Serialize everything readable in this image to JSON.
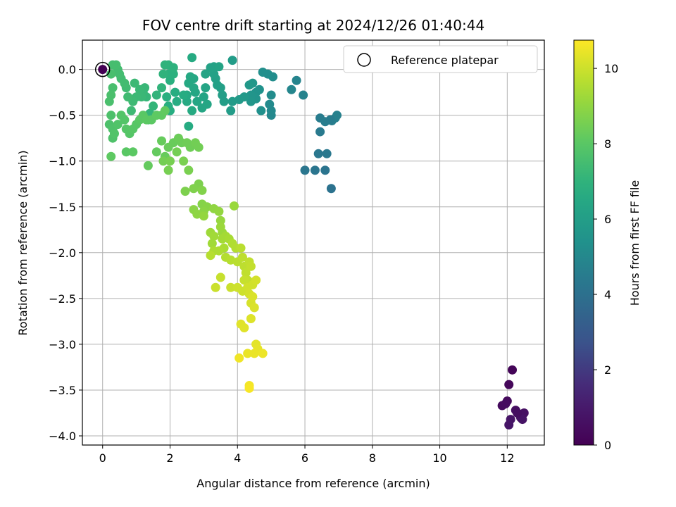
{
  "chart_data": {
    "type": "scatter",
    "title": "FOV centre drift starting at 2024/12/26 01:40:44",
    "xlabel": "Angular distance from reference (arcmin)",
    "ylabel": "Rotation from reference (arcmin)",
    "xlim": [
      -0.6,
      13.1
    ],
    "ylim": [
      -4.1,
      0.32
    ],
    "xticks": [
      0,
      2,
      4,
      6,
      8,
      10,
      12
    ],
    "yticks": [
      -4.0,
      -3.5,
      -3.0,
      -2.5,
      -2.0,
      -1.5,
      -1.0,
      -0.5,
      0.0
    ],
    "grid": true,
    "colorbar": {
      "label": "Hours from first FF file",
      "colormap": "viridis",
      "range": [
        0,
        10.75
      ],
      "ticks": [
        0,
        2,
        4,
        6,
        8,
        10
      ]
    },
    "legend": {
      "position": "top-right",
      "entries": [
        "Reference platepar"
      ]
    },
    "reference_point": {
      "x": 0,
      "y": 0,
      "hours": 0
    },
    "series": [
      {
        "points": [
          [
            12.15,
            -3.28,
            0.15
          ],
          [
            12.05,
            -3.44,
            0.25
          ],
          [
            12.0,
            -3.62,
            0.35
          ],
          [
            11.85,
            -3.67,
            0.4
          ],
          [
            11.95,
            -3.65,
            0.45
          ],
          [
            12.25,
            -3.72,
            0.55
          ],
          [
            12.5,
            -3.75,
            0.6
          ],
          [
            12.4,
            -3.8,
            0.65
          ],
          [
            12.45,
            -3.82,
            0.7
          ],
          [
            12.1,
            -3.82,
            0.75
          ],
          [
            12.05,
            -3.88,
            0.8
          ],
          [
            12.3,
            -3.75,
            0.5
          ],
          [
            6.78,
            -1.3,
            4.1
          ],
          [
            6.6,
            -1.1,
            4.15
          ],
          [
            6.3,
            -1.1,
            4.2
          ],
          [
            6.0,
            -1.1,
            4.25
          ],
          [
            6.4,
            -0.92,
            4.3
          ],
          [
            6.65,
            -0.92,
            4.35
          ],
          [
            6.45,
            -0.68,
            4.4
          ],
          [
            6.45,
            -0.53,
            4.5
          ],
          [
            6.6,
            -0.57,
            4.55
          ],
          [
            6.8,
            -0.56,
            4.6
          ],
          [
            6.9,
            -0.53,
            4.65
          ],
          [
            6.95,
            -0.5,
            4.7
          ],
          [
            6.75,
            -0.55,
            4.5
          ],
          [
            5.95,
            -0.28,
            4.8
          ],
          [
            5.75,
            -0.12,
            4.85
          ],
          [
            5.6,
            -0.22,
            4.9
          ],
          [
            5.0,
            -0.5,
            5.0
          ],
          [
            5.0,
            -0.45,
            5.05
          ],
          [
            4.95,
            -0.38,
            5.1
          ],
          [
            5.0,
            -0.28,
            5.15
          ],
          [
            5.05,
            -0.08,
            5.2
          ],
          [
            4.9,
            -0.05,
            5.25
          ],
          [
            4.75,
            -0.03,
            5.3
          ],
          [
            4.7,
            -0.45,
            5.35
          ],
          [
            4.65,
            -0.22,
            5.4
          ],
          [
            4.55,
            -0.25,
            5.45
          ],
          [
            4.55,
            -0.32,
            5.5
          ],
          [
            4.4,
            -0.28,
            5.55
          ],
          [
            4.4,
            -0.35,
            5.6
          ],
          [
            4.45,
            -0.15,
            5.65
          ],
          [
            4.35,
            -0.17,
            5.7
          ],
          [
            4.2,
            -0.3,
            5.75
          ],
          [
            4.05,
            -0.33,
            5.8
          ],
          [
            3.85,
            -0.35,
            5.85
          ],
          [
            3.8,
            -0.45,
            5.9
          ],
          [
            3.6,
            -0.35,
            5.95
          ],
          [
            3.55,
            -0.28,
            6.0
          ],
          [
            3.5,
            -0.2,
            6.05
          ],
          [
            3.4,
            -0.17,
            6.1
          ],
          [
            3.35,
            -0.1,
            6.1
          ],
          [
            3.3,
            -0.05,
            6.15
          ],
          [
            3.2,
            0.02,
            6.2
          ],
          [
            3.3,
            0.03,
            6.2
          ],
          [
            3.45,
            0.03,
            6.25
          ],
          [
            3.05,
            -0.05,
            6.25
          ],
          [
            3.05,
            -0.2,
            6.3
          ],
          [
            3.0,
            -0.3,
            6.3
          ],
          [
            3.1,
            -0.38,
            6.35
          ],
          [
            2.95,
            -0.42,
            6.35
          ],
          [
            2.8,
            -0.35,
            6.4
          ],
          [
            2.75,
            -0.25,
            6.4
          ],
          [
            2.7,
            -0.2,
            6.45
          ],
          [
            2.7,
            -0.1,
            6.45
          ],
          [
            2.6,
            -0.08,
            6.5
          ],
          [
            2.55,
            -0.15,
            6.5
          ],
          [
            2.5,
            -0.28,
            6.55
          ],
          [
            2.5,
            -0.35,
            6.55
          ],
          [
            2.65,
            -0.45,
            6.6
          ],
          [
            2.65,
            0.13,
            6.6
          ],
          [
            3.85,
            0.1,
            5.9
          ],
          [
            2.55,
            -0.62,
            6.65
          ],
          [
            2.4,
            -0.28,
            6.7
          ],
          [
            2.2,
            -0.35,
            6.7
          ],
          [
            2.15,
            -0.25,
            6.75
          ],
          [
            2.0,
            -0.45,
            6.75
          ],
          [
            1.95,
            -0.4,
            6.8
          ],
          [
            1.9,
            -0.3,
            6.85
          ],
          [
            2.0,
            -0.12,
            6.85
          ],
          [
            1.95,
            -0.05,
            6.9
          ],
          [
            2.1,
            -0.05,
            6.9
          ],
          [
            2.1,
            0.02,
            6.95
          ],
          [
            1.95,
            0.05,
            6.95
          ],
          [
            1.85,
            0.05,
            7.0
          ],
          [
            1.8,
            -0.05,
            7.0
          ],
          [
            1.75,
            -0.2,
            7.05
          ],
          [
            1.6,
            -0.28,
            7.05
          ],
          [
            1.5,
            -0.4,
            7.1
          ],
          [
            1.4,
            -0.48,
            7.1
          ],
          [
            1.35,
            -0.55,
            7.15
          ],
          [
            1.3,
            -0.3,
            7.15
          ],
          [
            1.25,
            -0.2,
            7.2
          ],
          [
            1.2,
            -0.25,
            7.2
          ],
          [
            1.15,
            -0.3,
            7.25
          ],
          [
            1.1,
            -0.22,
            7.25
          ],
          [
            1.0,
            -0.3,
            7.3
          ],
          [
            0.95,
            -0.15,
            7.3
          ],
          [
            0.9,
            -0.35,
            7.35
          ],
          [
            0.85,
            -0.45,
            7.35
          ],
          [
            0.75,
            -0.3,
            7.4
          ],
          [
            0.7,
            -0.2,
            7.4
          ],
          [
            0.65,
            -0.15,
            7.45
          ],
          [
            0.55,
            -0.1,
            7.45
          ],
          [
            0.5,
            -0.05,
            7.5
          ],
          [
            0.45,
            0.0,
            7.5
          ],
          [
            0.4,
            0.05,
            7.55
          ],
          [
            0.3,
            0.05,
            7.55
          ],
          [
            0.25,
            -0.05,
            7.6
          ],
          [
            0.3,
            -0.2,
            7.6
          ],
          [
            0.25,
            -0.28,
            7.65
          ],
          [
            0.2,
            -0.35,
            7.65
          ],
          [
            0.25,
            -0.5,
            7.7
          ],
          [
            0.2,
            -0.6,
            7.7
          ],
          [
            0.3,
            -0.65,
            7.75
          ],
          [
            0.3,
            -0.75,
            7.75
          ],
          [
            0.35,
            -0.7,
            7.8
          ],
          [
            0.45,
            -0.6,
            7.8
          ],
          [
            0.55,
            -0.5,
            7.85
          ],
          [
            0.65,
            -0.55,
            7.85
          ],
          [
            0.7,
            -0.65,
            7.9
          ],
          [
            0.8,
            -0.7,
            7.9
          ],
          [
            0.9,
            -0.65,
            7.95
          ],
          [
            1.0,
            -0.6,
            7.95
          ],
          [
            1.1,
            -0.55,
            8.0
          ],
          [
            1.2,
            -0.5,
            8.0
          ],
          [
            1.3,
            -0.55,
            8.05
          ],
          [
            1.45,
            -0.55,
            8.05
          ],
          [
            1.6,
            -0.5,
            8.1
          ],
          [
            1.75,
            -0.5,
            8.1
          ],
          [
            1.85,
            -0.45,
            8.15
          ],
          [
            0.7,
            -0.9,
            8.0
          ],
          [
            0.9,
            -0.9,
            8.05
          ],
          [
            0.25,
            -0.95,
            8.1
          ],
          [
            1.35,
            -1.05,
            8.2
          ],
          [
            1.6,
            -0.9,
            8.2
          ],
          [
            1.75,
            -0.78,
            8.25
          ],
          [
            1.85,
            -0.95,
            8.25
          ],
          [
            1.95,
            -0.85,
            8.3
          ],
          [
            2.1,
            -0.8,
            8.3
          ],
          [
            2.25,
            -0.75,
            8.35
          ],
          [
            2.35,
            -0.8,
            8.35
          ],
          [
            2.5,
            -0.8,
            8.4
          ],
          [
            2.6,
            -0.85,
            8.4
          ],
          [
            2.75,
            -0.8,
            8.45
          ],
          [
            2.85,
            -0.85,
            8.45
          ],
          [
            2.2,
            -0.9,
            8.5
          ],
          [
            1.8,
            -1.0,
            8.5
          ],
          [
            2.0,
            -1.0,
            8.55
          ],
          [
            1.95,
            -1.1,
            8.55
          ],
          [
            2.4,
            -1.0,
            8.6
          ],
          [
            2.55,
            -1.1,
            8.6
          ],
          [
            2.85,
            -1.25,
            8.65
          ],
          [
            2.45,
            -1.33,
            8.65
          ],
          [
            2.7,
            -1.3,
            8.7
          ],
          [
            2.95,
            -1.32,
            8.75
          ],
          [
            2.95,
            -1.47,
            8.8
          ],
          [
            3.1,
            -1.5,
            8.85
          ],
          [
            3.0,
            -1.55,
            8.9
          ],
          [
            2.7,
            -1.53,
            8.9
          ],
          [
            2.8,
            -1.58,
            8.95
          ],
          [
            3.3,
            -1.52,
            9.0
          ],
          [
            3.45,
            -1.55,
            9.05
          ],
          [
            3.0,
            -1.6,
            9.05
          ],
          [
            3.5,
            -1.65,
            9.1
          ],
          [
            3.9,
            -1.49,
            9.15
          ],
          [
            3.5,
            -1.72,
            9.2
          ],
          [
            3.55,
            -1.78,
            9.2
          ],
          [
            3.2,
            -1.78,
            9.25
          ],
          [
            3.3,
            -1.82,
            9.3
          ],
          [
            3.25,
            -1.9,
            9.3
          ],
          [
            3.55,
            -1.85,
            9.35
          ],
          [
            3.65,
            -1.82,
            9.35
          ],
          [
            3.75,
            -1.85,
            9.4
          ],
          [
            3.6,
            -1.95,
            9.45
          ],
          [
            3.45,
            -1.98,
            9.5
          ],
          [
            3.3,
            -1.98,
            9.5
          ],
          [
            3.85,
            -1.9,
            9.55
          ],
          [
            3.95,
            -1.95,
            9.6
          ],
          [
            3.65,
            -2.05,
            9.6
          ],
          [
            3.8,
            -2.08,
            9.65
          ],
          [
            3.2,
            -2.03,
            9.65
          ],
          [
            4.1,
            -1.95,
            9.7
          ],
          [
            4.0,
            -2.1,
            9.7
          ],
          [
            4.15,
            -2.05,
            9.75
          ],
          [
            4.2,
            -2.15,
            9.75
          ],
          [
            4.25,
            -2.22,
            9.8
          ],
          [
            4.35,
            -2.1,
            9.8
          ],
          [
            4.4,
            -2.15,
            9.85
          ],
          [
            4.3,
            -2.3,
            9.85
          ],
          [
            4.2,
            -2.3,
            9.9
          ],
          [
            3.5,
            -2.27,
            9.9
          ],
          [
            3.35,
            -2.38,
            9.95
          ],
          [
            3.8,
            -2.38,
            9.95
          ],
          [
            4.0,
            -2.38,
            10.0
          ],
          [
            4.15,
            -2.42,
            10.0
          ],
          [
            4.3,
            -2.38,
            10.05
          ],
          [
            4.45,
            -2.35,
            10.05
          ],
          [
            4.55,
            -2.3,
            10.1
          ],
          [
            4.35,
            -2.45,
            10.1
          ],
          [
            4.4,
            -2.55,
            10.15
          ],
          [
            4.5,
            -2.6,
            10.2
          ],
          [
            4.45,
            -2.48,
            10.2
          ],
          [
            4.4,
            -2.72,
            10.25
          ],
          [
            4.1,
            -2.78,
            10.3
          ],
          [
            4.2,
            -2.82,
            10.3
          ],
          [
            4.55,
            -3.0,
            10.35
          ],
          [
            4.6,
            -3.05,
            10.4
          ],
          [
            4.5,
            -3.1,
            10.45
          ],
          [
            4.3,
            -3.1,
            10.45
          ],
          [
            4.75,
            -3.1,
            10.5
          ],
          [
            4.05,
            -3.15,
            10.55
          ],
          [
            4.35,
            -3.45,
            10.6
          ],
          [
            4.35,
            -3.48,
            10.65
          ]
        ]
      }
    ]
  }
}
